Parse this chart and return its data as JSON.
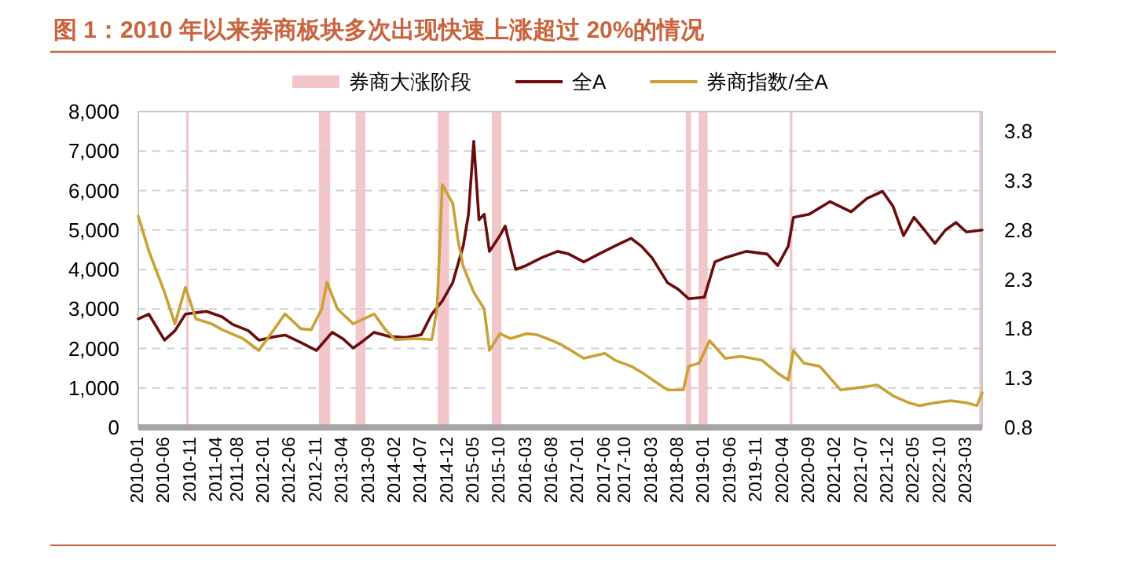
{
  "chart_data": {
    "type": "line",
    "title": "图 1：2010 年以来券商板块多次出现快速上涨超过 20%的情况",
    "xlim": [
      "2010-01",
      "2023-06"
    ],
    "xticks": [
      "2010-01",
      "2010-06",
      "2010-11",
      "2011-04",
      "2011-08",
      "2012-01",
      "2012-06",
      "2012-11",
      "2013-04",
      "2013-09",
      "2014-02",
      "2014-07",
      "2014-12",
      "2015-05",
      "2015-10",
      "2016-03",
      "2016-08",
      "2017-01",
      "2017-06",
      "2017-10",
      "2018-03",
      "2018-08",
      "2019-01",
      "2019-06",
      "2019-11",
      "2020-04",
      "2020-09",
      "2021-02",
      "2021-07",
      "2021-12",
      "2022-05",
      "2022-10",
      "2023-03"
    ],
    "ylim": [
      0,
      8000
    ],
    "yticks": [
      {
        "value": 0,
        "label": "0"
      },
      {
        "value": 1000,
        "label": "1,000"
      },
      {
        "value": 2000,
        "label": "2,000"
      },
      {
        "value": 3000,
        "label": "3,000"
      },
      {
        "value": 4000,
        "label": "4,000"
      },
      {
        "value": 5000,
        "label": "5,000"
      },
      {
        "value": 6000,
        "label": "6,000"
      },
      {
        "value": 7000,
        "label": "7,000"
      },
      {
        "value": 8000,
        "label": "8,000"
      }
    ],
    "y2lim": [
      0.8,
      4.0
    ],
    "y2ticks": [
      0.8,
      1.3,
      1.8,
      2.3,
      2.8,
      3.3,
      3.8
    ],
    "grid": "y",
    "legend": "top",
    "bands": [
      {
        "axis": "x",
        "from": "2010-10-05",
        "to": "2010-10-20",
        "label": "券商大涨阶段",
        "color": "#f2c6ca"
      },
      {
        "axis": "x",
        "from": "2012-11-15",
        "to": "2013-01-20",
        "color": "#f2c6ca"
      },
      {
        "axis": "x",
        "from": "2013-06-15",
        "to": "2013-08-12",
        "color": "#f2c6ca"
      },
      {
        "axis": "x",
        "from": "2014-10-05",
        "to": "2014-12-10",
        "color": "#f2c6ca"
      },
      {
        "axis": "x",
        "from": "2015-08-15",
        "to": "2015-10-10",
        "color": "#f2c6ca"
      },
      {
        "axis": "x",
        "from": "2018-09-15",
        "to": "2018-10-15",
        "color": "#f2c6ca"
      },
      {
        "axis": "x",
        "from": "2018-11-28",
        "to": "2019-01-20",
        "color": "#f2c6ca"
      },
      {
        "axis": "x",
        "from": "2020-05-10",
        "to": "2020-05-25",
        "color": "#f2c6ca"
      },
      {
        "axis": "x",
        "from": "2023-05-15",
        "to": "2023-06-01",
        "color": "#f2c6ca"
      }
    ],
    "series": [
      {
        "name": "全A",
        "color": "#6b0d0d",
        "x": [
          "2010-01",
          "2010-03",
          "2010-06",
          "2010-08",
          "2010-10",
          "2011-02",
          "2011-05",
          "2011-07",
          "2011-10",
          "2011-12",
          "2012-03",
          "2012-05",
          "2012-08",
          "2012-11",
          "2013-02",
          "2013-04",
          "2013-06",
          "2013-08",
          "2013-10",
          "2014-01",
          "2014-04",
          "2014-07",
          "2014-09",
          "2014-11",
          "2015-01",
          "2015-03",
          "2015-04",
          "2015-05",
          "2015-06",
          "2015-07",
          "2015-08",
          "2015-10",
          "2015-11",
          "2016-01",
          "2016-03",
          "2016-06",
          "2016-09",
          "2016-11",
          "2017-02",
          "2017-05",
          "2017-08",
          "2017-11",
          "2018-01",
          "2018-03",
          "2018-06",
          "2018-08",
          "2018-10",
          "2019-01",
          "2019-03",
          "2019-05",
          "2019-09",
          "2020-01",
          "2020-03",
          "2020-05",
          "2020-06",
          "2020-09",
          "2021-01",
          "2021-05",
          "2021-08",
          "2021-11",
          "2022-01",
          "2022-03",
          "2022-05",
          "2022-07",
          "2022-09",
          "2022-11",
          "2023-01",
          "2023-03",
          "2023-06"
        ],
        "values": [
          2750,
          2870,
          2210,
          2450,
          2870,
          2940,
          2800,
          2610,
          2450,
          2210,
          2300,
          2340,
          2150,
          1950,
          2410,
          2250,
          2010,
          2200,
          2410,
          2300,
          2280,
          2350,
          2870,
          3200,
          3670,
          4600,
          5400,
          7250,
          5260,
          5400,
          4460,
          4860,
          5100,
          4000,
          4100,
          4300,
          4460,
          4400,
          4190,
          4400,
          4600,
          4790,
          4590,
          4300,
          3660,
          3500,
          3260,
          3300,
          4190,
          4300,
          4460,
          4390,
          4100,
          4590,
          5320,
          5400,
          5720,
          5460,
          5800,
          5980,
          5600,
          4860,
          5320,
          5000,
          4660,
          5000,
          5190,
          4950,
          5000
        ]
      },
      {
        "name": "券商指数/全A",
        "color": "#c9a135",
        "axis": "y2",
        "x": [
          "2010-01",
          "2010-03",
          "2010-06",
          "2010-08",
          "2010-10",
          "2010-12",
          "2011-03",
          "2011-05",
          "2011-09",
          "2011-12",
          "2012-03",
          "2012-05",
          "2012-08",
          "2012-10",
          "2012-12",
          "2013-01",
          "2013-03",
          "2013-06",
          "2013-08",
          "2013-10",
          "2013-12",
          "2014-02",
          "2014-06",
          "2014-09",
          "2014-10",
          "2014-11",
          "2015-01",
          "2015-02",
          "2015-03",
          "2015-05",
          "2015-07",
          "2015-08",
          "2015-10",
          "2015-12",
          "2016-03",
          "2016-05",
          "2016-08",
          "2016-10",
          "2017-02",
          "2017-06",
          "2017-08",
          "2017-11",
          "2018-01",
          "2018-04",
          "2018-06",
          "2018-09",
          "2018-10",
          "2018-12",
          "2019-02",
          "2019-05",
          "2019-08",
          "2019-12",
          "2020-03",
          "2020-05",
          "2020-06",
          "2020-08",
          "2020-11",
          "2021-01",
          "2021-03",
          "2021-06",
          "2021-10",
          "2022-01",
          "2022-04",
          "2022-06",
          "2022-09",
          "2022-12",
          "2023-03",
          "2023-05",
          "2023-06"
        ],
        "values": [
          2.94,
          2.59,
          2.17,
          1.85,
          2.22,
          1.9,
          1.85,
          1.79,
          1.7,
          1.58,
          1.8,
          1.95,
          1.8,
          1.79,
          2.0,
          2.27,
          2.0,
          1.85,
          1.9,
          1.95,
          1.8,
          1.69,
          1.7,
          1.69,
          2.0,
          3.26,
          3.07,
          2.7,
          2.43,
          2.17,
          2.0,
          1.58,
          1.75,
          1.7,
          1.75,
          1.74,
          1.68,
          1.63,
          1.5,
          1.55,
          1.48,
          1.42,
          1.36,
          1.25,
          1.18,
          1.18,
          1.42,
          1.45,
          1.68,
          1.5,
          1.52,
          1.48,
          1.35,
          1.28,
          1.58,
          1.45,
          1.42,
          1.3,
          1.18,
          1.2,
          1.23,
          1.12,
          1.05,
          1.02,
          1.05,
          1.07,
          1.05,
          1.02,
          1.15
        ]
      }
    ]
  }
}
